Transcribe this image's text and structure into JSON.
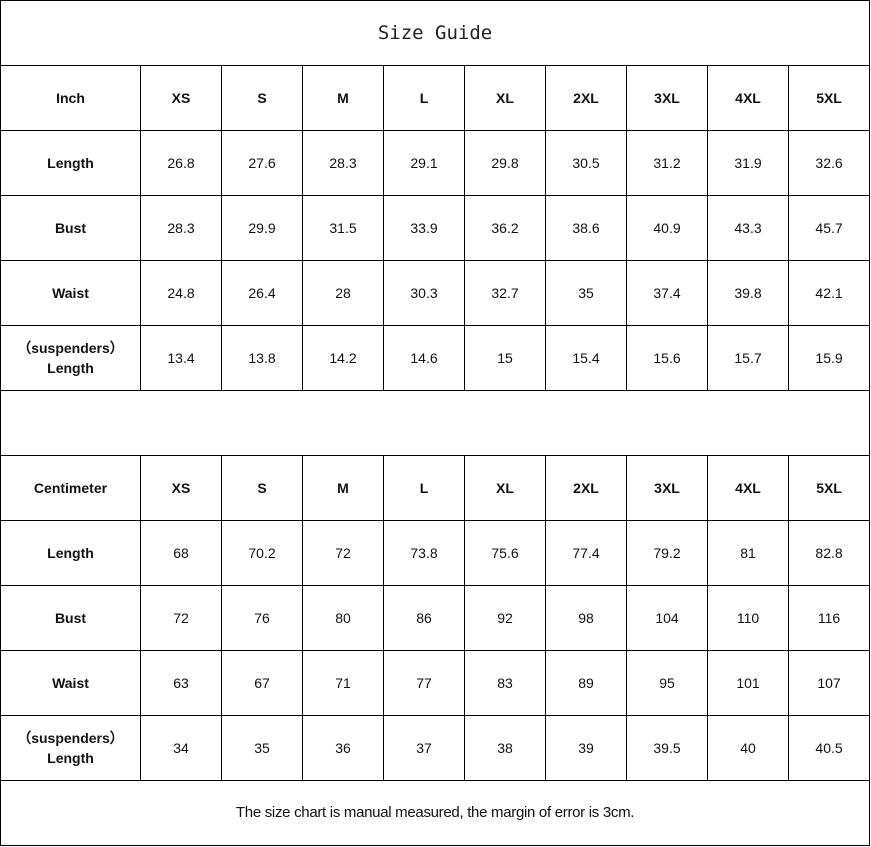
{
  "title": "Size Guide",
  "sizes": [
    "XS",
    "S",
    "M",
    "L",
    "XL",
    "2XL",
    "3XL",
    "4XL",
    "5XL"
  ],
  "tables": [
    {
      "unit": "Inch",
      "rows": [
        {
          "label": "Length",
          "values": [
            "26.8",
            "27.6",
            "28.3",
            "29.1",
            "29.8",
            "30.5",
            "31.2",
            "31.9",
            "32.6"
          ]
        },
        {
          "label": "Bust",
          "values": [
            "28.3",
            "29.9",
            "31.5",
            "33.9",
            "36.2",
            "38.6",
            "40.9",
            "43.3",
            "45.7"
          ]
        },
        {
          "label": "Waist",
          "values": [
            "24.8",
            "26.4",
            "28",
            "30.3",
            "32.7",
            "35",
            "37.4",
            "39.8",
            "42.1"
          ]
        },
        {
          "label": "（suspenders）Length",
          "label_line1": "（suspenders）",
          "label_line2": "Length",
          "values": [
            "13.4",
            "13.8",
            "14.2",
            "14.6",
            "15",
            "15.4",
            "15.6",
            "15.7",
            "15.9"
          ]
        }
      ]
    },
    {
      "unit": "Centimeter",
      "rows": [
        {
          "label": "Length",
          "values": [
            "68",
            "70.2",
            "72",
            "73.8",
            "75.6",
            "77.4",
            "79.2",
            "81",
            "82.8"
          ]
        },
        {
          "label": "Bust",
          "values": [
            "72",
            "76",
            "80",
            "86",
            "92",
            "98",
            "104",
            "110",
            "116"
          ]
        },
        {
          "label": "Waist",
          "values": [
            "63",
            "67",
            "71",
            "77",
            "83",
            "89",
            "95",
            "101",
            "107"
          ]
        },
        {
          "label": "（suspenders）Length",
          "label_line1": "（suspenders）",
          "label_line2": "Length",
          "values": [
            "34",
            "35",
            "36",
            "37",
            "38",
            "39",
            "39.5",
            "40",
            "40.5"
          ]
        }
      ]
    }
  ],
  "note": "The size chart is manual measured, the margin of error is 3cm."
}
